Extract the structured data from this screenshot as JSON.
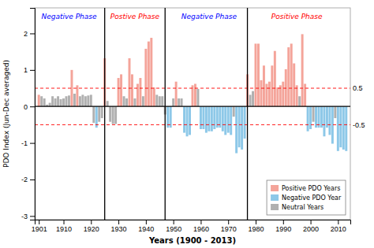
{
  "chart_data": {
    "type": "bar",
    "xlabel": "Years (1900 - 2013)",
    "ylabel": "PDO Index (Jun-Dec averaged)",
    "x": [
      1901,
      1902,
      1903,
      1904,
      1905,
      1906,
      1907,
      1908,
      1909,
      1910,
      1911,
      1912,
      1913,
      1914,
      1915,
      1916,
      1917,
      1918,
      1919,
      1920,
      1921,
      1922,
      1923,
      1924,
      1925,
      1926,
      1927,
      1928,
      1929,
      1930,
      1931,
      1932,
      1933,
      1934,
      1935,
      1936,
      1937,
      1938,
      1939,
      1940,
      1941,
      1942,
      1943,
      1944,
      1945,
      1946,
      1947,
      1948,
      1949,
      1950,
      1951,
      1952,
      1953,
      1954,
      1955,
      1956,
      1957,
      1958,
      1959,
      1960,
      1961,
      1962,
      1963,
      1964,
      1965,
      1966,
      1967,
      1968,
      1969,
      1970,
      1971,
      1972,
      1973,
      1974,
      1975,
      1976,
      1977,
      1978,
      1979,
      1980,
      1981,
      1982,
      1983,
      1984,
      1985,
      1986,
      1987,
      1988,
      1989,
      1990,
      1991,
      1992,
      1993,
      1994,
      1995,
      1996,
      1997,
      1998,
      1999,
      2000,
      2001,
      2002,
      2003,
      2004,
      2005,
      2006,
      2007,
      2008,
      2009,
      2010,
      2011,
      2012,
      2013
    ],
    "values": [
      0.32,
      0.28,
      0.22,
      0.05,
      0.1,
      0.28,
      0.22,
      0.28,
      0.2,
      0.22,
      0.28,
      0.3,
      1.0,
      0.35,
      0.58,
      0.28,
      0.32,
      0.28,
      0.3,
      0.32,
      -0.45,
      -0.58,
      -0.42,
      -0.32,
      1.32,
      0.15,
      -0.42,
      -0.48,
      -0.48,
      0.78,
      0.88,
      0.28,
      0.22,
      1.32,
      0.88,
      0.22,
      0.62,
      0.78,
      0.28,
      1.58,
      1.78,
      1.88,
      0.52,
      0.32,
      0.28,
      0.28,
      -0.22,
      -0.58,
      -0.58,
      0.22,
      0.68,
      0.22,
      0.22,
      -0.72,
      -0.82,
      -0.78,
      0.58,
      0.62,
      0.48,
      -0.62,
      -0.62,
      -0.72,
      -0.68,
      -0.68,
      -0.62,
      -0.58,
      -0.58,
      -0.68,
      -0.78,
      -0.72,
      -0.78,
      -0.28,
      -1.28,
      -1.12,
      -1.18,
      -0.88,
      0.88,
      0.32,
      0.42,
      1.72,
      1.72,
      0.72,
      1.12,
      0.62,
      0.68,
      1.12,
      1.52,
      0.52,
      0.58,
      0.68,
      1.02,
      1.62,
      1.72,
      1.18,
      0.58,
      0.28,
      1.98,
      0.62,
      -0.68,
      -0.62,
      -0.42,
      -0.58,
      -0.58,
      -0.58,
      -0.82,
      -0.58,
      -0.78,
      -1.02,
      -0.32,
      -1.22,
      -1.12,
      -1.18,
      -1.22
    ],
    "colors": [
      "#F4A49A",
      "#B0B0B0",
      "#B0B0B0",
      "#B0B0B0",
      "#B0B0B0",
      "#B0B0B0",
      "#B0B0B0",
      "#B0B0B0",
      "#B0B0B0",
      "#B0B0B0",
      "#B0B0B0",
      "#B0B0B0",
      "#F4A49A",
      "#B0B0B0",
      "#F4A49A",
      "#B0B0B0",
      "#B0B0B0",
      "#B0B0B0",
      "#B0B0B0",
      "#B0B0B0",
      "#B0B0B0",
      "#8DC8E8",
      "#B0B0B0",
      "#B0B0B0",
      "#F4A49A",
      "#B0B0B0",
      "#B0B0B0",
      "#B0B0B0",
      "#B0B0B0",
      "#F4A49A",
      "#F4A49A",
      "#B0B0B0",
      "#B0B0B0",
      "#F4A49A",
      "#F4A49A",
      "#B0B0B0",
      "#F4A49A",
      "#F4A49A",
      "#B0B0B0",
      "#F4A49A",
      "#F4A49A",
      "#F4A49A",
      "#F4A49A",
      "#B0B0B0",
      "#B0B0B0",
      "#B0B0B0",
      "#B0B0B0",
      "#8DC8E8",
      "#8DC8E8",
      "#B0B0B0",
      "#F4A49A",
      "#B0B0B0",
      "#B0B0B0",
      "#8DC8E8",
      "#8DC8E8",
      "#8DC8E8",
      "#F4A49A",
      "#F4A49A",
      "#B0B0B0",
      "#8DC8E8",
      "#8DC8E8",
      "#8DC8E8",
      "#8DC8E8",
      "#8DC8E8",
      "#8DC8E8",
      "#8DC8E8",
      "#8DC8E8",
      "#8DC8E8",
      "#8DC8E8",
      "#8DC8E8",
      "#8DC8E8",
      "#B0B0B0",
      "#8DC8E8",
      "#8DC8E8",
      "#8DC8E8",
      "#8DC8E8",
      "#F4A49A",
      "#B0B0B0",
      "#B0B0B0",
      "#F4A49A",
      "#F4A49A",
      "#F4A49A",
      "#F4A49A",
      "#F4A49A",
      "#F4A49A",
      "#F4A49A",
      "#F4A49A",
      "#F4A49A",
      "#F4A49A",
      "#F4A49A",
      "#F4A49A",
      "#F4A49A",
      "#F4A49A",
      "#F4A49A",
      "#F4A49A",
      "#B0B0B0",
      "#F4A49A",
      "#F4A49A",
      "#8DC8E8",
      "#8DC8E8",
      "#B0B0B0",
      "#8DC8E8",
      "#8DC8E8",
      "#8DC8E8",
      "#8DC8E8",
      "#8DC8E8",
      "#8DC8E8",
      "#8DC8E8",
      "#B0B0B0",
      "#8DC8E8",
      "#8DC8E8",
      "#8DC8E8",
      "#8DC8E8"
    ],
    "xlim": [
      1899.5,
      2014.5
    ],
    "xticks": [
      1901,
      1910,
      1920,
      1930,
      1940,
      1950,
      1960,
      1970,
      1980,
      1990,
      2000,
      2010
    ],
    "ylim": [
      -3.1,
      2.7
    ],
    "yticks": [
      -3,
      -2,
      -1,
      0,
      1,
      2
    ],
    "y2lim": [
      -3.1,
      2.7
    ],
    "y2ticks": [
      -0.5,
      0.5
    ],
    "reference_lines": [
      0,
      0.5,
      -0.5
    ],
    "vertical_lines": [
      1925,
      1947,
      1977
    ],
    "annotations": [
      {
        "text": "Negative Phase",
        "x": 1912,
        "y": 2.55,
        "color": "blue"
      },
      {
        "text": "Postive Phase",
        "x": 1936,
        "y": 2.55,
        "color": "red"
      },
      {
        "text": "Negative Phase",
        "x": 1963,
        "y": 2.55,
        "color": "blue"
      },
      {
        "text": "Positive Phase",
        "x": 1995,
        "y": 2.55,
        "color": "red"
      }
    ],
    "legend": "lower right",
    "legend_items": [
      {
        "label": "Positive PDO Years",
        "color": "#F4A49A"
      },
      {
        "label": "Negative PDO Year",
        "color": "#8DC8E8"
      },
      {
        "label": "Neutral Years",
        "color": "#B0B0B0"
      }
    ]
  }
}
